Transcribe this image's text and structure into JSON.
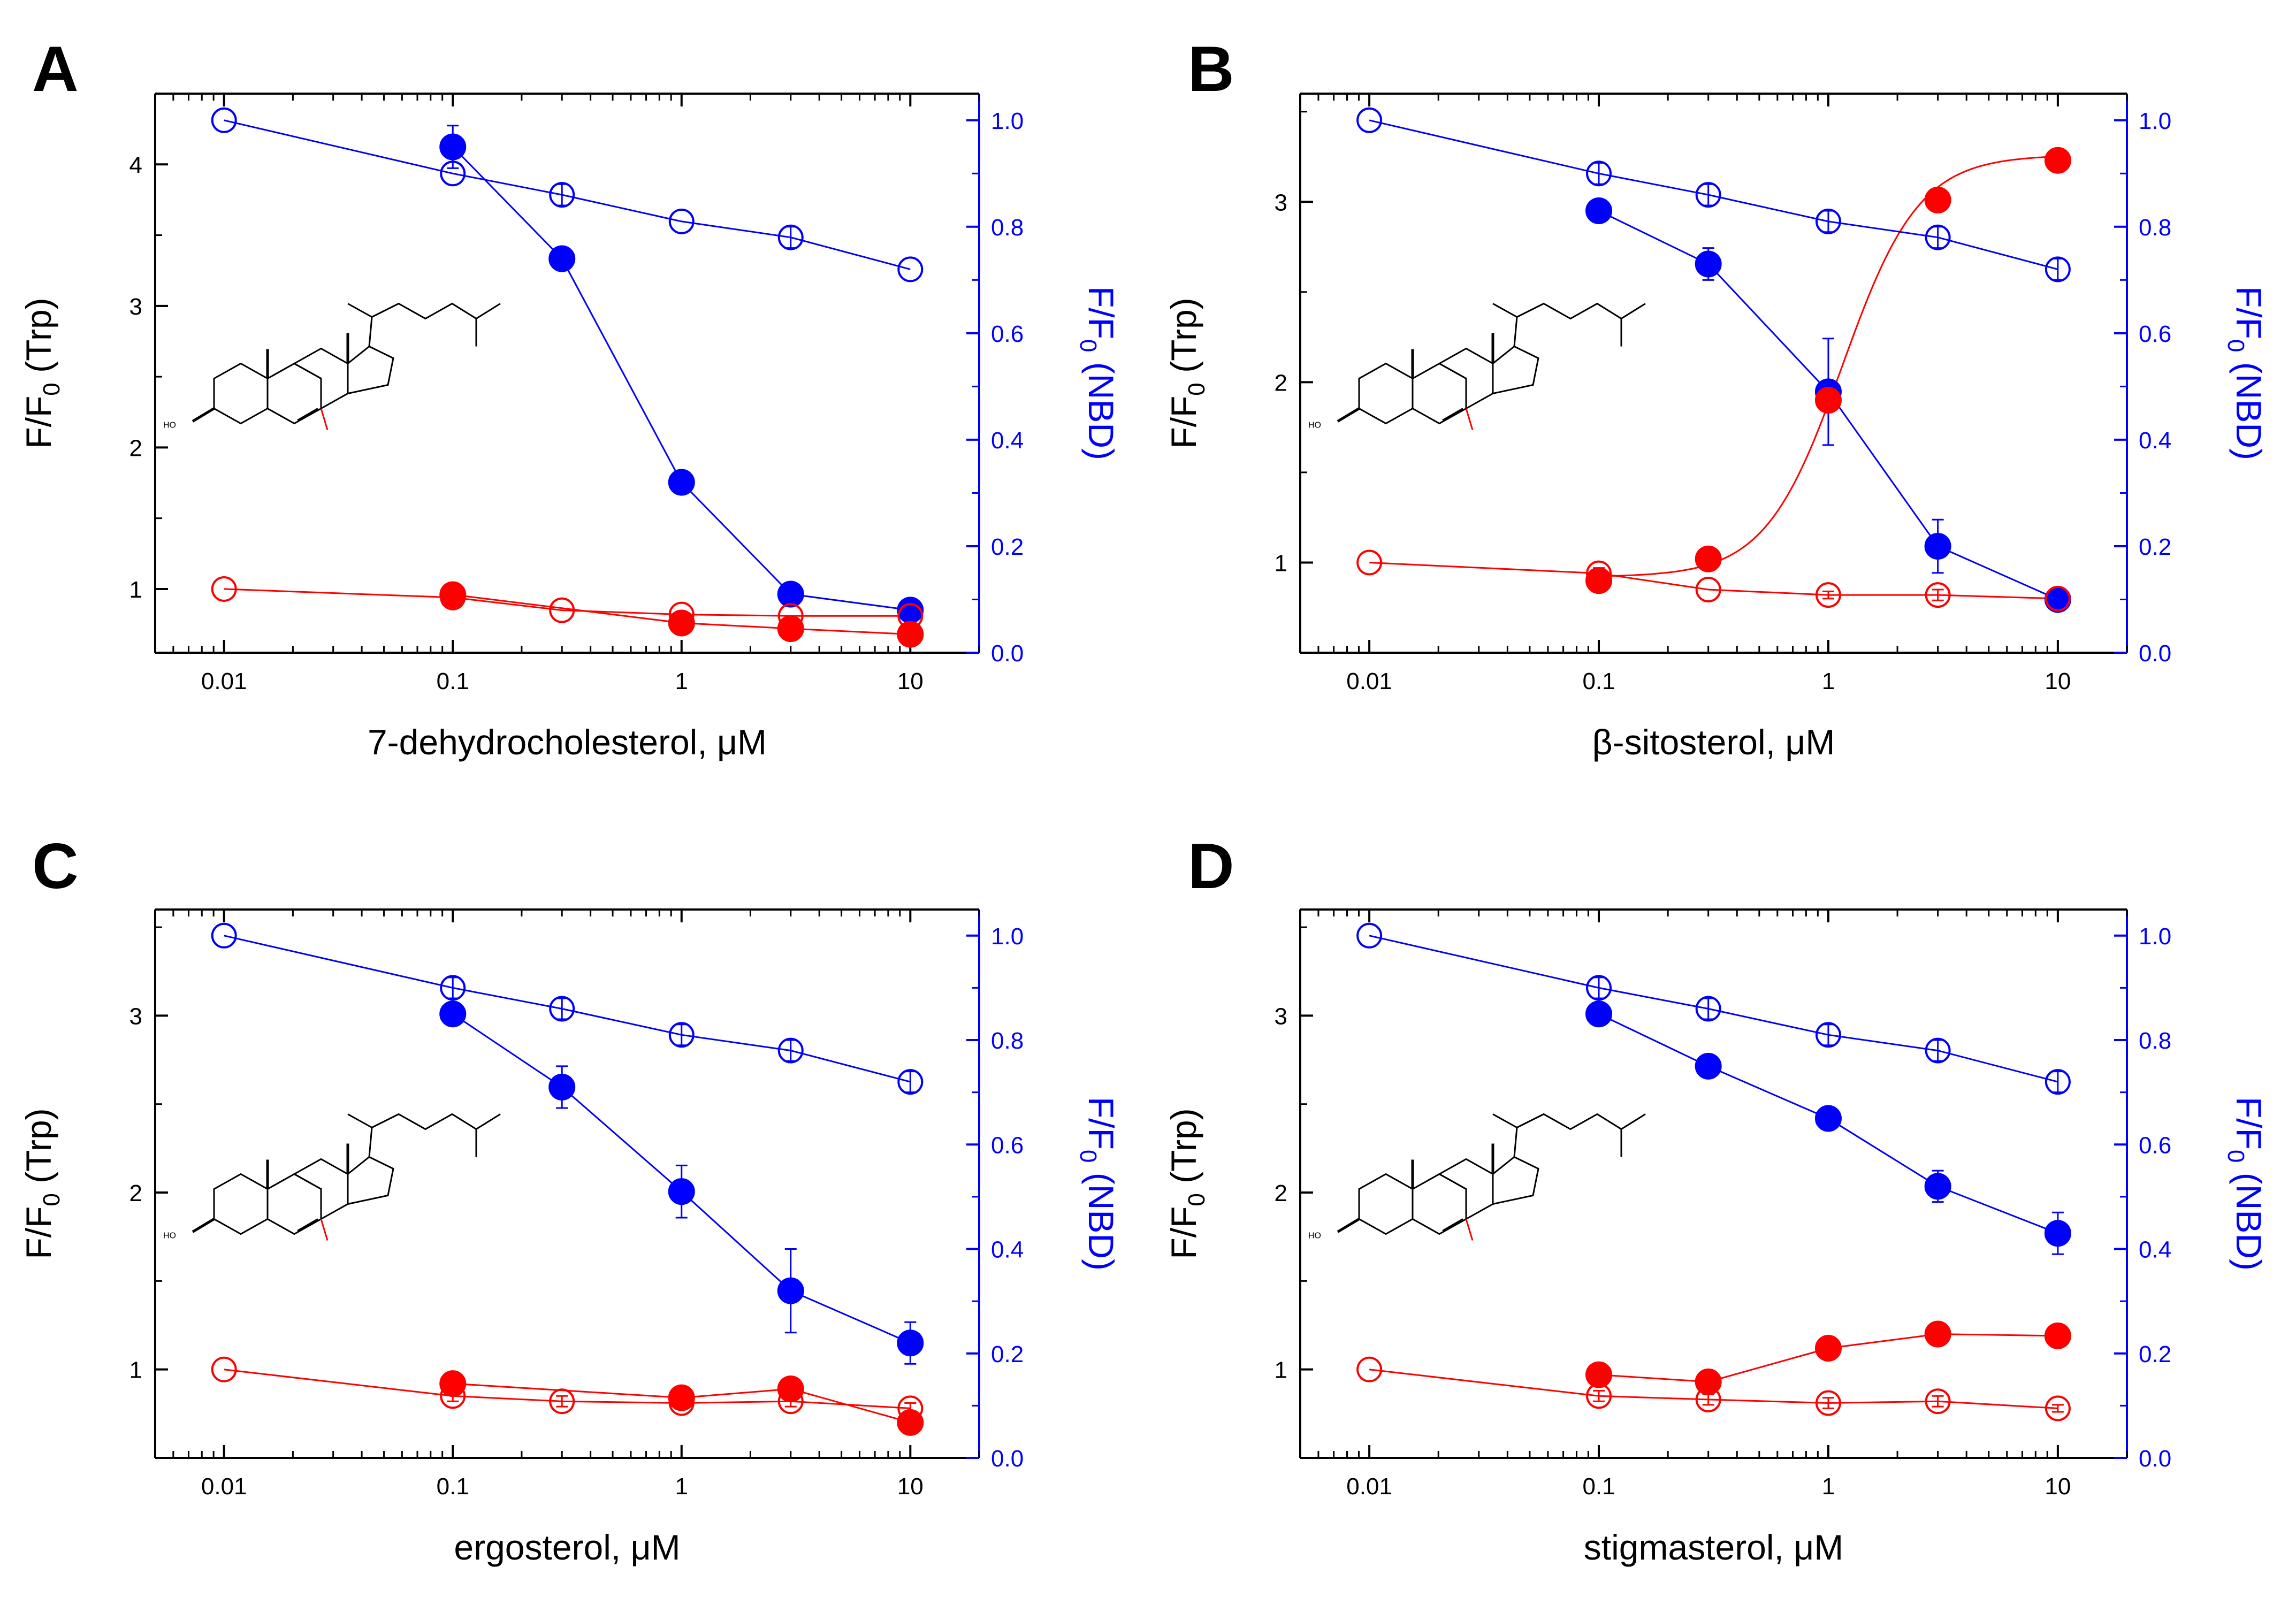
{
  "colors": {
    "left_axis": "#000000",
    "right_axis": "#0000ff",
    "trp": "#ff0000",
    "nbd": "#0000ff",
    "structure": "#000000",
    "structure_highlight": "#ff0000"
  },
  "chart_data": [
    {
      "panel": "A",
      "type": "line",
      "xlabel": "7-dehydrocholesterol, μM",
      "xscale": "log",
      "xlim": [
        0.005,
        20
      ],
      "xticks": [
        0.01,
        0.1,
        1,
        10
      ],
      "xtick_labels": [
        "0.01",
        "0.1",
        "1",
        "10"
      ],
      "ylabel_left": {
        "main": "F/F",
        "sub": "0",
        "rest": " (Trp)"
      },
      "ylim_left": [
        0.55,
        4.5
      ],
      "yticks_left": [
        1,
        2,
        3,
        4
      ],
      "ylabel_right": {
        "main": "F/F",
        "sub": "0",
        "rest": " (NBD)"
      },
      "ylim_right": [
        0.0,
        1.05
      ],
      "yticks_right": [
        0.0,
        0.2,
        0.4,
        0.6,
        0.8,
        1.0
      ],
      "structure_label": "HO",
      "series": [
        {
          "name": "NBD, open",
          "axis": "right",
          "marker": "open",
          "color": "nbd",
          "x": [
            0.01,
            0.1,
            0.3,
            1,
            3,
            10
          ],
          "y": [
            1.0,
            0.9,
            0.86,
            0.81,
            0.78,
            0.72
          ],
          "err": [
            0.0,
            0.0,
            0.02,
            0.0,
            0.02,
            0.0
          ]
        },
        {
          "name": "NBD, filled",
          "axis": "right",
          "marker": "filled",
          "color": "nbd",
          "x": [
            0.1,
            0.3,
            1,
            3,
            10
          ],
          "y": [
            0.95,
            0.74,
            0.32,
            0.11,
            0.08
          ],
          "err": [
            0.04,
            0.0,
            0.02,
            0.0,
            0.0
          ]
        },
        {
          "name": "Trp, open",
          "axis": "left",
          "marker": "open",
          "color": "trp",
          "x": [
            0.01,
            0.1,
            0.3,
            1,
            3,
            10
          ],
          "y": [
            1.0,
            0.94,
            0.85,
            0.82,
            0.81,
            0.81
          ],
          "err": [
            0,
            0,
            0,
            0,
            0,
            0
          ]
        },
        {
          "name": "Trp, filled",
          "axis": "left",
          "marker": "filled",
          "color": "trp",
          "x": [
            0.1,
            1,
            3,
            10
          ],
          "y": [
            0.96,
            0.76,
            0.72,
            0.68
          ],
          "err": [
            0,
            0,
            0,
            0
          ]
        }
      ]
    },
    {
      "panel": "B",
      "type": "line",
      "xlabel": "β-sitosterol, μM",
      "xscale": "log",
      "xlim": [
        0.005,
        20
      ],
      "xticks": [
        0.01,
        0.1,
        1,
        10
      ],
      "xtick_labels": [
        "0.01",
        "0.1",
        "1",
        "10"
      ],
      "ylabel_left": {
        "main": "F/F",
        "sub": "0",
        "rest": " (Trp)"
      },
      "ylim_left": [
        0.5,
        3.6
      ],
      "yticks_left": [
        1,
        2,
        3
      ],
      "ylabel_right": {
        "main": "F/F",
        "sub": "0",
        "rest": " (NBD)"
      },
      "ylim_right": [
        0.0,
        1.05
      ],
      "yticks_right": [
        0.0,
        0.2,
        0.4,
        0.6,
        0.8,
        1.0
      ],
      "structure_label": "HO",
      "series": [
        {
          "name": "NBD, open",
          "axis": "right",
          "marker": "open",
          "color": "nbd",
          "x": [
            0.01,
            0.1,
            0.3,
            1,
            3,
            10
          ],
          "y": [
            1.0,
            0.9,
            0.86,
            0.81,
            0.78,
            0.72
          ],
          "err": [
            0.0,
            0.02,
            0.02,
            0.02,
            0.02,
            0.02
          ]
        },
        {
          "name": "NBD, filled",
          "axis": "right",
          "marker": "filled",
          "color": "nbd",
          "x": [
            0.1,
            0.3,
            1,
            3,
            10
          ],
          "y": [
            0.83,
            0.73,
            0.49,
            0.2,
            0.1
          ],
          "err": [
            0.0,
            0.03,
            0.1,
            0.05,
            0.0
          ]
        },
        {
          "name": "Trp, open",
          "axis": "left",
          "marker": "open",
          "color": "trp",
          "x": [
            0.01,
            0.1,
            0.3,
            1,
            3,
            10
          ],
          "y": [
            1.0,
            0.94,
            0.85,
            0.82,
            0.82,
            0.8
          ],
          "err": [
            0.0,
            0.03,
            0.0,
            0.02,
            0.03,
            0.0
          ]
        },
        {
          "name": "Trp, filled",
          "axis": "left",
          "marker": "filled",
          "color": "trp",
          "x": [
            0.1,
            0.3,
            1,
            3,
            10
          ],
          "y": [
            0.9,
            1.02,
            1.9,
            3.01,
            3.23
          ],
          "err": [
            0,
            0,
            0,
            0,
            0
          ]
        }
      ],
      "fit_curve": {
        "axis": "left",
        "color": "trp",
        "base": 0.92,
        "top": 3.26,
        "ec50": 1.15,
        "hill": 2.6
      }
    },
    {
      "panel": "C",
      "type": "line",
      "xlabel": "ergosterol, μM",
      "xscale": "log",
      "xlim": [
        0.005,
        20
      ],
      "xticks": [
        0.01,
        0.1,
        1,
        10
      ],
      "xtick_labels": [
        "0.01",
        "0.1",
        "1",
        "10"
      ],
      "ylabel_left": {
        "main": "F/F",
        "sub": "0",
        "rest": " (Trp)"
      },
      "ylim_left": [
        0.5,
        3.6
      ],
      "yticks_left": [
        1,
        2,
        3
      ],
      "ylabel_right": {
        "main": "F/F",
        "sub": "0",
        "rest": " (NBD)"
      },
      "ylim_right": [
        0.0,
        1.05
      ],
      "yticks_right": [
        0.0,
        0.2,
        0.4,
        0.6,
        0.8,
        1.0
      ],
      "structure_label": "HO",
      "series": [
        {
          "name": "NBD, open",
          "axis": "right",
          "marker": "open",
          "color": "nbd",
          "x": [
            0.01,
            0.1,
            0.3,
            1,
            3,
            10
          ],
          "y": [
            1.0,
            0.9,
            0.86,
            0.81,
            0.78,
            0.72
          ],
          "err": [
            0.0,
            0.02,
            0.02,
            0.02,
            0.02,
            0.02
          ]
        },
        {
          "name": "NBD, filled",
          "axis": "right",
          "marker": "filled",
          "color": "nbd",
          "x": [
            0.1,
            0.3,
            1,
            3,
            10
          ],
          "y": [
            0.85,
            0.71,
            0.51,
            0.32,
            0.22
          ],
          "err": [
            0.0,
            0.04,
            0.05,
            0.08,
            0.04
          ]
        },
        {
          "name": "Trp, open",
          "axis": "left",
          "marker": "open",
          "color": "trp",
          "x": [
            0.01,
            0.1,
            0.3,
            1,
            3,
            10
          ],
          "y": [
            1.0,
            0.85,
            0.82,
            0.81,
            0.82,
            0.78
          ],
          "err": [
            0.0,
            0.03,
            0.03,
            0.02,
            0.03,
            0.03
          ]
        },
        {
          "name": "Trp, filled",
          "axis": "left",
          "marker": "filled",
          "color": "trp",
          "x": [
            0.1,
            1,
            3,
            10
          ],
          "y": [
            0.92,
            0.84,
            0.89,
            0.7
          ],
          "err": [
            0,
            0,
            0,
            0
          ]
        }
      ]
    },
    {
      "panel": "D",
      "type": "line",
      "xlabel": "stigmasterol, μM",
      "xscale": "log",
      "xlim": [
        0.005,
        20
      ],
      "xticks": [
        0.01,
        0.1,
        1,
        10
      ],
      "xtick_labels": [
        "0.01",
        "0.1",
        "1",
        "10"
      ],
      "ylabel_left": {
        "main": "F/F",
        "sub": "0",
        "rest": " (Trp)"
      },
      "ylim_left": [
        0.5,
        3.6
      ],
      "yticks_left": [
        1,
        2,
        3
      ],
      "ylabel_right": {
        "main": "F/F",
        "sub": "0",
        "rest": " (NBD)"
      },
      "ylim_right": [
        0.0,
        1.05
      ],
      "yticks_right": [
        0.0,
        0.2,
        0.4,
        0.6,
        0.8,
        1.0
      ],
      "structure_label": "HO",
      "series": [
        {
          "name": "NBD, open",
          "axis": "right",
          "marker": "open",
          "color": "nbd",
          "x": [
            0.01,
            0.1,
            0.3,
            1,
            3,
            10
          ],
          "y": [
            1.0,
            0.9,
            0.86,
            0.81,
            0.78,
            0.72
          ],
          "err": [
            0.0,
            0.02,
            0.02,
            0.02,
            0.02,
            0.02
          ]
        },
        {
          "name": "NBD, filled",
          "axis": "right",
          "marker": "filled",
          "color": "nbd",
          "x": [
            0.1,
            0.3,
            1,
            3,
            10
          ],
          "y": [
            0.85,
            0.75,
            0.65,
            0.52,
            0.43
          ],
          "err": [
            0.0,
            0.0,
            0.0,
            0.03,
            0.04
          ]
        },
        {
          "name": "Trp, open",
          "axis": "left",
          "marker": "open",
          "color": "trp",
          "x": [
            0.01,
            0.1,
            0.3,
            1,
            3,
            10
          ],
          "y": [
            1.0,
            0.85,
            0.83,
            0.81,
            0.82,
            0.78
          ],
          "err": [
            0.0,
            0.03,
            0.03,
            0.03,
            0.03,
            0.02
          ]
        },
        {
          "name": "Trp, filled",
          "axis": "left",
          "marker": "filled",
          "color": "trp",
          "x": [
            0.1,
            0.3,
            1,
            3,
            10
          ],
          "y": [
            0.97,
            0.93,
            1.12,
            1.2,
            1.19
          ],
          "err": [
            0,
            0,
            0,
            0,
            0
          ]
        }
      ]
    }
  ]
}
